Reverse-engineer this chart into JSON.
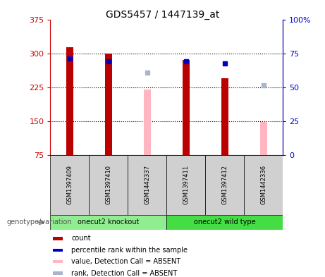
{
  "title": "GDS5457 / 1447139_at",
  "samples": [
    "GSM1397409",
    "GSM1397410",
    "GSM1442337",
    "GSM1397411",
    "GSM1397412",
    "GSM1442336"
  ],
  "red_bars": [
    313,
    300,
    null,
    285,
    245,
    null
  ],
  "pink_bars": [
    null,
    null,
    220,
    null,
    null,
    148
  ],
  "blue_squares": [
    288,
    283,
    null,
    283,
    278,
    null
  ],
  "lightblue_squares": [
    null,
    null,
    258,
    null,
    null,
    230
  ],
  "ylim_left": [
    75,
    375
  ],
  "ylim_right": [
    0,
    100
  ],
  "yticks_left": [
    75,
    150,
    225,
    300,
    375
  ],
  "yticks_right": [
    0,
    25,
    50,
    75,
    100
  ],
  "ytick_labels_left": [
    "75",
    "150",
    "225",
    "300",
    "375"
  ],
  "ytick_labels_right": [
    "0",
    "25",
    "50",
    "75",
    "100%"
  ],
  "bar_width": 0.18,
  "red_color": "#bb0000",
  "pink_color": "#ffb6c1",
  "blue_color": "#0000bb",
  "lightblue_color": "#aab4cc",
  "left_axis_color": "#cc0000",
  "right_axis_color": "#0000cc",
  "sample_box_color": "#d0d0d0",
  "groups_info": [
    {
      "xstart": 0,
      "xend": 3,
      "label": "onecut2 knockout",
      "color": "#90ee90"
    },
    {
      "xstart": 3,
      "xend": 6,
      "label": "onecut2 wild type",
      "color": "#44dd44"
    }
  ],
  "legend_items": [
    {
      "color": "#bb0000",
      "label": "count"
    },
    {
      "color": "#0000bb",
      "label": "percentile rank within the sample"
    },
    {
      "color": "#ffb6c1",
      "label": "value, Detection Call = ABSENT"
    },
    {
      "color": "#aab4cc",
      "label": "rank, Detection Call = ABSENT"
    }
  ],
  "genotype_label": "genotype/variation"
}
